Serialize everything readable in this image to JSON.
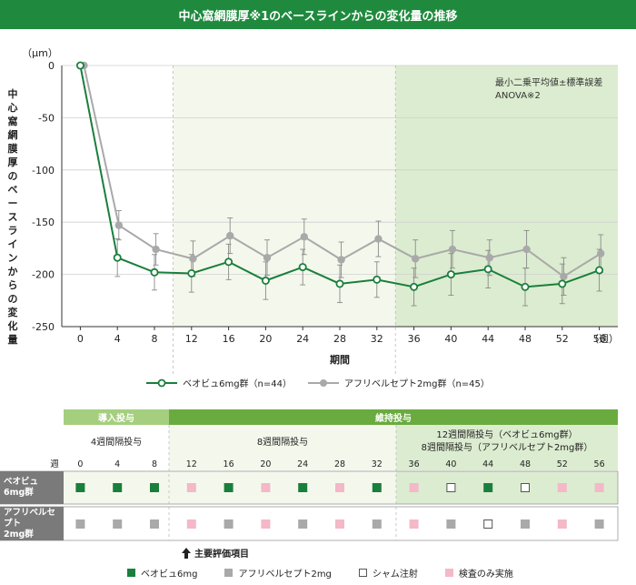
{
  "page": {
    "title": "中心窩網膜厚※1のベースラインからの変化量の推移",
    "ylabel": "中心窩網膜厚のベースラインからの変化量",
    "unit": "（μm）",
    "xlabel": "期間",
    "x_unit": "（週）",
    "stat_note_line1": "最小二乗平均値±標準誤差",
    "stat_note_line2": "ANOVA※2"
  },
  "chart_data": {
    "type": "line",
    "x": [
      0,
      4,
      8,
      12,
      16,
      20,
      24,
      28,
      32,
      36,
      40,
      44,
      48,
      52,
      56
    ],
    "ylim": [
      -250,
      0
    ],
    "yticks": [
      0,
      -50,
      -100,
      -150,
      -200,
      -250
    ],
    "grid": true,
    "series": [
      {
        "name": "ベオビュ6mg群（n=44）",
        "color": "#1a7f3c",
        "values": [
          0,
          -184,
          -198,
          -199,
          -188,
          -206,
          -193,
          -209,
          -205,
          -212,
          -200,
          -195,
          -212,
          -209,
          -196
        ],
        "error": [
          0,
          18,
          17,
          18,
          17,
          18,
          17,
          18,
          17,
          18,
          20,
          18,
          18,
          19,
          20
        ]
      },
      {
        "name": "アフリベルセプト2mg群（n=45）",
        "color": "#a9a9a9",
        "values": [
          0,
          -153,
          -176,
          -185,
          -163,
          -184,
          -164,
          -186,
          -166,
          -185,
          -176,
          -184,
          -176,
          -202,
          -180
        ],
        "error": [
          0,
          14,
          15,
          17,
          17,
          17,
          17,
          17,
          17,
          18,
          18,
          17,
          18,
          18,
          18
        ]
      }
    ],
    "shaded_regions": [
      {
        "from": 10,
        "to": 34,
        "color": "#f4f8ec"
      },
      {
        "from": 34,
        "to": 58,
        "color": "#dcecd0"
      }
    ]
  },
  "schedule": {
    "phase_loading": "導入投与",
    "phase_maintenance": "維持投与",
    "interval_4w": "4週間隔投与",
    "interval_8w": "8週間隔投与",
    "interval_12w_line1": "12週間隔投与（ベオビュ6mg群）",
    "interval_12w_line2": "8週間隔投与（アフリベルセプト2mg群）",
    "week_label": "週",
    "weeks": [
      "0",
      "4",
      "8",
      "12",
      "16",
      "20",
      "24",
      "28",
      "32",
      "36",
      "40",
      "44",
      "48",
      "52",
      "56"
    ],
    "row_beovu_line1": "ベオビュ",
    "row_beovu_line2": "6mg群",
    "row_afli_line1": "アフリベルセプト",
    "row_afli_line2": "2mg群",
    "beovu_marks": [
      "G",
      "G",
      "G",
      "P",
      "G",
      "P",
      "G",
      "P",
      "G",
      "P",
      "W",
      "G",
      "W",
      "P",
      "P"
    ],
    "afli_marks": [
      "Y",
      "Y",
      "Y",
      "P",
      "Y",
      "P",
      "Y",
      "P",
      "Y",
      "P",
      "Y",
      "W",
      "Y",
      "P",
      "Y"
    ],
    "primary_endpoint": "主要評価項目",
    "legend": {
      "beovu": "ベオビュ6mg",
      "afli": "アフリベルセプト2mg",
      "sham": "シャム注射",
      "exam": "検査のみ実施"
    },
    "colors": {
      "G": "#1a7f3c",
      "Y": "#a9a9a9",
      "W": "#ffffff",
      "P": "#f4b8c8"
    }
  }
}
